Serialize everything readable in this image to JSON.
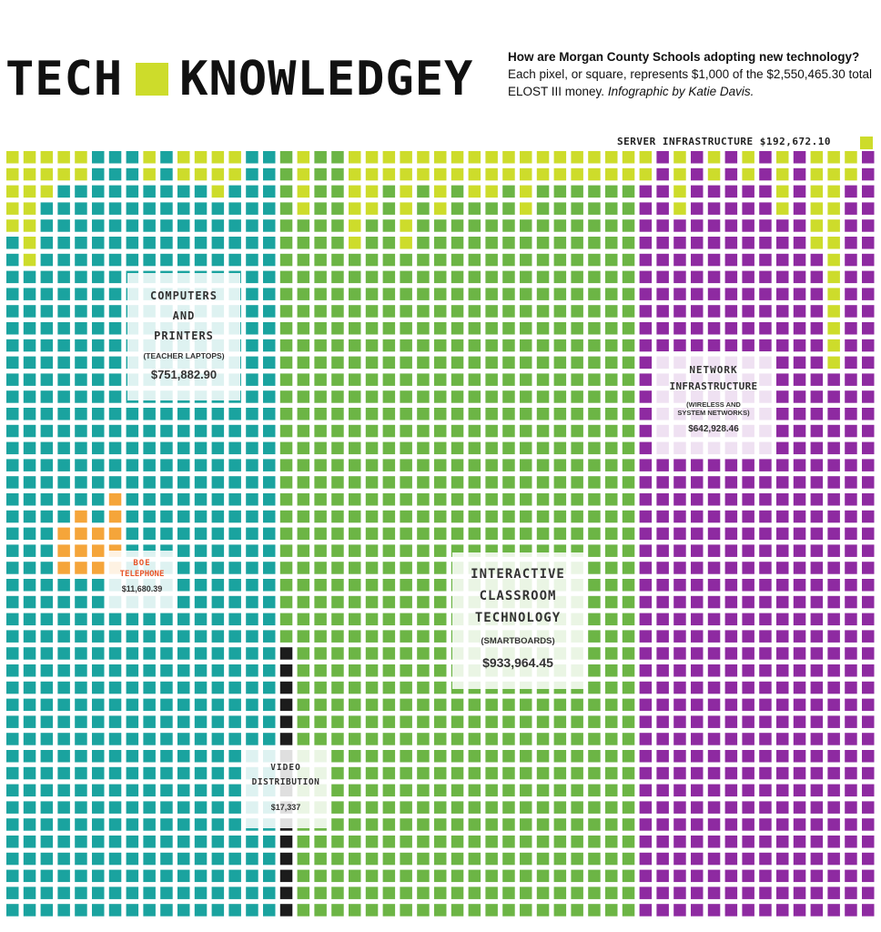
{
  "header": {
    "title_left": "TECH",
    "title_right": "KNOWLEDGEY",
    "question": "How are Morgan County Schools adopting new technology?",
    "description": "Each pixel, or square, represents $1,000 of the $2,550,465.30 total ELOST III money.",
    "credit": "Infographic by Katie Davis."
  },
  "chart_data": {
    "type": "waffle",
    "unit_value": 1000,
    "total": 2550465.3,
    "total_label": "$2,550,465.30",
    "series": [
      {
        "name": "COMPUTERS AND PRINTERS",
        "note": "(TEACHER LAPTOPS)",
        "value": 751882.9,
        "label": "$751,882.90",
        "color": "#1aa39f"
      },
      {
        "name": "BOE TELEPHONE",
        "value": 11680.39,
        "label": "$11,680.39",
        "color": "#f5a53a"
      },
      {
        "name": "VIDEO DISTRIBUTION",
        "value": 17337,
        "label": "$17,337",
        "color": "#1c1c1c"
      },
      {
        "name": "INTERACTIVE CLASSROOM TECHNOLOGY",
        "note": "(SMARTBOARDS)",
        "value": 933964.45,
        "label": "$933,964.45",
        "color": "#6cb545"
      },
      {
        "name": "NETWORK INFRASTRUCTURE",
        "note": "(WIRELESS AND SYSTEM NETWORKS)",
        "value": 642928.46,
        "label": "$642,928.46",
        "color": "#8e2aa1"
      },
      {
        "name": "SERVER INFRASTRUCTURE",
        "value": 192672.1,
        "label": "$192,672.10",
        "color": "#cddc2b"
      }
    ]
  },
  "labels": {
    "computers": {
      "lines": [
        "COMPUTERS",
        "AND",
        "PRINTERS"
      ],
      "note": "(TEACHER LAPTOPS)",
      "amount": "$751,882.90"
    },
    "boe": {
      "lines": [
        "BOE",
        "TELEPHONE"
      ],
      "amount": "$11,680.39",
      "color": "#e8562a"
    },
    "video": {
      "lines": [
        "VIDEO",
        "DISTRIBUTION"
      ],
      "amount": "$17,337"
    },
    "interactive": {
      "lines": [
        "INTERACTIVE",
        "CLASSROOM",
        "TECHNOLOGY"
      ],
      "note": "(SMARTBOARDS)",
      "amount": "$933,964.45"
    },
    "network": {
      "lines": [
        "NETWORK",
        "INFRASTRUCTURE"
      ],
      "note1": "(WIRELESS AND",
      "note2": "SYSTEM NETWORKS)",
      "amount": "$642,928.46"
    },
    "server": {
      "text": "SERVER INFRASTRUCTURE",
      "amount": "$192,672.10"
    }
  }
}
